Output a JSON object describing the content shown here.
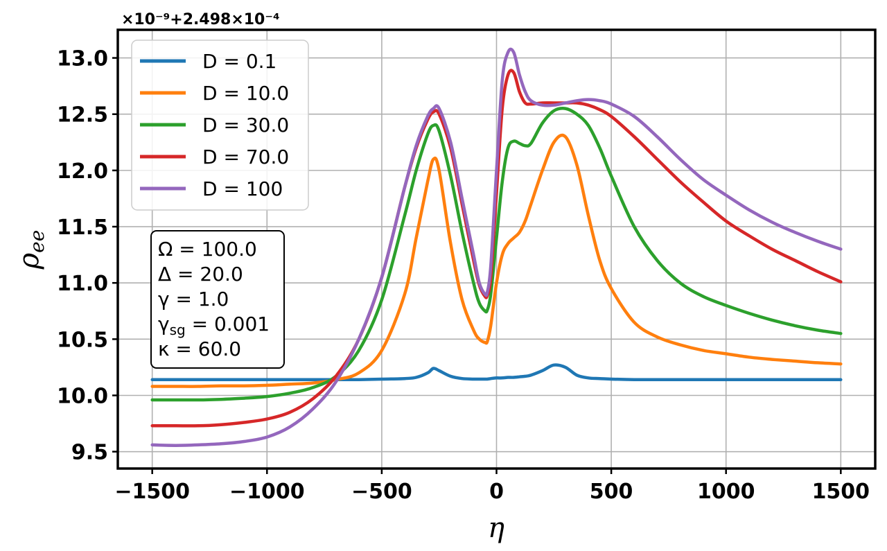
{
  "chart_data": {
    "type": "line",
    "title": "",
    "xlabel": "η",
    "ylabel": "ρ_ee",
    "ylabel_main": "ρ",
    "ylabel_sub": "ee",
    "offset_label": "×10⁻⁹+2.498×10⁻⁴",
    "xlim": [
      -1650,
      1650
    ],
    "ylim": [
      9.35,
      13.25
    ],
    "xticks": [
      -1500,
      -1000,
      -500,
      0,
      500,
      1000,
      1500
    ],
    "xtick_labels": [
      "−1500",
      "−1000",
      "−500",
      "0",
      "500",
      "1000",
      "1500"
    ],
    "yticks": [
      9.5,
      10.0,
      10.5,
      11.0,
      11.5,
      12.0,
      12.5,
      13.0
    ],
    "ytick_labels": [
      "9.5",
      "10.0",
      "10.5",
      "11.0",
      "11.5",
      "12.0",
      "12.5",
      "13.0"
    ],
    "grid": true,
    "legend_position": "top-left",
    "x": [
      -1500,
      -1400,
      -1300,
      -1200,
      -1100,
      -1000,
      -900,
      -800,
      -700,
      -600,
      -500,
      -400,
      -350,
      -300,
      -275,
      -250,
      -200,
      -150,
      -100,
      -75,
      -50,
      -40,
      -25,
      0,
      25,
      50,
      75,
      100,
      125,
      150,
      200,
      250,
      300,
      350,
      400,
      450,
      500,
      600,
      700,
      800,
      900,
      1000,
      1100,
      1200,
      1300,
      1400,
      1500
    ],
    "series": [
      {
        "name": "D = 0.1",
        "color": "#1f77b4",
        "values": [
          10.14,
          10.14,
          10.14,
          10.14,
          10.14,
          10.14,
          10.14,
          10.14,
          10.14,
          10.14,
          10.145,
          10.15,
          10.16,
          10.2,
          10.24,
          10.22,
          10.17,
          10.15,
          10.145,
          10.145,
          10.145,
          10.145,
          10.15,
          10.155,
          10.155,
          10.16,
          10.16,
          10.165,
          10.17,
          10.18,
          10.22,
          10.27,
          10.25,
          10.18,
          10.155,
          10.15,
          10.145,
          10.14,
          10.14,
          10.14,
          10.14,
          10.14,
          10.14,
          10.14,
          10.14,
          10.14,
          10.14
        ]
      },
      {
        "name": "D = 10.0",
        "color": "#ff7f0e",
        "values": [
          10.08,
          10.08,
          10.08,
          10.085,
          10.085,
          10.09,
          10.1,
          10.11,
          10.14,
          10.2,
          10.4,
          10.9,
          11.4,
          11.9,
          12.1,
          12.0,
          11.35,
          10.85,
          10.58,
          10.5,
          10.47,
          10.48,
          10.62,
          11.0,
          11.25,
          11.35,
          11.4,
          11.45,
          11.55,
          11.7,
          12.0,
          12.25,
          12.3,
          12.05,
          11.6,
          11.2,
          10.95,
          10.65,
          10.52,
          10.45,
          10.4,
          10.37,
          10.34,
          10.32,
          10.305,
          10.29,
          10.28
        ]
      },
      {
        "name": "D = 30.0",
        "color": "#2ca02c",
        "values": [
          9.96,
          9.96,
          9.96,
          9.965,
          9.975,
          9.99,
          10.02,
          10.07,
          10.17,
          10.4,
          10.85,
          11.6,
          12.0,
          12.32,
          12.4,
          12.35,
          11.95,
          11.45,
          11.0,
          10.82,
          10.75,
          10.76,
          10.9,
          11.4,
          11.9,
          12.2,
          12.26,
          12.24,
          12.22,
          12.24,
          12.42,
          12.53,
          12.55,
          12.5,
          12.4,
          12.2,
          11.95,
          11.5,
          11.2,
          11.0,
          10.88,
          10.8,
          10.73,
          10.67,
          10.62,
          10.58,
          10.55
        ]
      },
      {
        "name": "D = 70.0",
        "color": "#d62728",
        "values": [
          9.73,
          9.73,
          9.73,
          9.74,
          9.76,
          9.79,
          9.85,
          9.97,
          10.17,
          10.5,
          11.05,
          11.85,
          12.2,
          12.45,
          12.52,
          12.5,
          12.2,
          11.7,
          11.2,
          10.98,
          10.88,
          10.89,
          11.05,
          11.8,
          12.55,
          12.85,
          12.87,
          12.7,
          12.6,
          12.59,
          12.6,
          12.6,
          12.6,
          12.6,
          12.58,
          12.54,
          12.48,
          12.3,
          12.1,
          11.9,
          11.72,
          11.55,
          11.42,
          11.3,
          11.2,
          11.1,
          11.01
        ]
      },
      {
        "name": "D = 100",
        "color": "#9467bd",
        "values": [
          9.56,
          9.555,
          9.56,
          9.57,
          9.59,
          9.63,
          9.72,
          9.88,
          10.12,
          10.5,
          11.05,
          11.85,
          12.22,
          12.48,
          12.55,
          12.55,
          12.25,
          11.75,
          11.25,
          11.0,
          10.9,
          10.92,
          11.15,
          12.0,
          12.8,
          13.05,
          13.05,
          12.85,
          12.7,
          12.62,
          12.58,
          12.58,
          12.6,
          12.62,
          12.63,
          12.62,
          12.59,
          12.48,
          12.3,
          12.1,
          11.92,
          11.78,
          11.65,
          11.54,
          11.45,
          11.37,
          11.3
        ]
      }
    ],
    "annotation_lines": [
      "Ω = 100.0",
      "Δ = 20.0",
      "γ = 1.0",
      "γsg = 0.001",
      "κ = 60.0"
    ]
  },
  "annotation": {
    "omega": "Ω = 100.0",
    "delta": "Δ = 20.0",
    "gamma": "γ = 1.0",
    "gamma_sg_main": "γ",
    "gamma_sg_sub": "sg",
    "gamma_sg_value": " = 0.001",
    "kappa": "κ = 60.0"
  }
}
